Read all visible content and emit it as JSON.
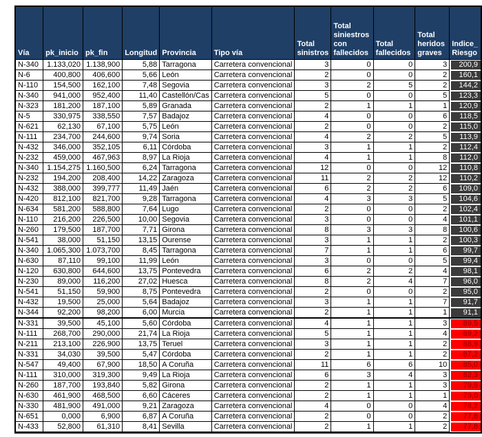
{
  "colors": {
    "header_bg": "#1f3f66",
    "header_text": "#ffffff",
    "grid": "#000000",
    "risk_dark_bg": "#3b3b3b",
    "risk_dark_text": "#ffffff",
    "risk_red_bg": "#fe0000",
    "risk_red_text": "#8e0000"
  },
  "table": {
    "thick_border_after_row": 25,
    "columns": [
      {
        "key": "via",
        "label": "Vía",
        "align": "left",
        "width": 45
      },
      {
        "key": "pk_inicio",
        "label": "pk_inicio",
        "align": "right",
        "width": 61
      },
      {
        "key": "pk_fin",
        "label": "pk_fin",
        "align": "right",
        "width": 59
      },
      {
        "key": "longitud",
        "label": "Longitud",
        "align": "right",
        "width": 49
      },
      {
        "key": "provincia",
        "label": "Provincia",
        "align": "left",
        "width": 62
      },
      {
        "key": "tipo_via",
        "label": "Tipo vía",
        "align": "left",
        "width": 116
      },
      {
        "key": "total_sinistros",
        "label": "Total sinistros",
        "align": "right",
        "width": 44
      },
      {
        "key": "total_siniestros_con_fallecidos",
        "label": "Total siniestros con fallecidos",
        "align": "right",
        "width": 65
      },
      {
        "key": "total_fallecidos",
        "label": "Total fallecidos",
        "align": "right",
        "width": 65
      },
      {
        "key": "total_heridos_graves",
        "label": "Total heridos graves",
        "align": "right",
        "width": 55
      },
      {
        "key": "indice_riesgo",
        "label": "Indice_ Riesgo",
        "align": "right",
        "width": 46
      }
    ],
    "rows": [
      {
        "risk": "dark",
        "values": [
          "N-340",
          "1.133,020",
          "1.138,900",
          "5,88",
          "Tarragona",
          "Carretera convencional",
          "3",
          "0",
          "0",
          "3",
          "200,9"
        ]
      },
      {
        "risk": "dark",
        "values": [
          "N-6",
          "400,800",
          "406,600",
          "5,66",
          "León",
          "Carretera convencional",
          "2",
          "0",
          "0",
          "2",
          "160,1"
        ]
      },
      {
        "risk": "dark",
        "values": [
          "N-110",
          "154,500",
          "162,100",
          "7,48",
          "Segovia",
          "Carretera convencional",
          "3",
          "2",
          "5",
          "2",
          "144,2"
        ]
      },
      {
        "risk": "dark",
        "values": [
          "N-340",
          "941,000",
          "952,400",
          "11,40",
          "Castellón/Cas",
          "Carretera convencional",
          "5",
          "0",
          "0",
          "5",
          "123,3"
        ]
      },
      {
        "risk": "dark",
        "values": [
          "N-323",
          "181,200",
          "187,100",
          "5,89",
          "Granada",
          "Carretera convencional",
          "2",
          "1",
          "1",
          "1",
          "120,9"
        ]
      },
      {
        "risk": "dark",
        "values": [
          "N-5",
          "330,975",
          "338,550",
          "7,57",
          "Badajoz",
          "Carretera convencional",
          "4",
          "0",
          "0",
          "6",
          "118,5"
        ]
      },
      {
        "risk": "dark",
        "values": [
          "N-621",
          "62,130",
          "67,100",
          "5,75",
          "León",
          "Carretera convencional",
          "2",
          "0",
          "0",
          "2",
          "115,0"
        ]
      },
      {
        "risk": "dark",
        "values": [
          "N-111",
          "234,700",
          "244,600",
          "9,74",
          "Soria",
          "Carretera convencional",
          "4",
          "2",
          "2",
          "5",
          "113,9"
        ]
      },
      {
        "risk": "dark",
        "values": [
          "N-432",
          "346,000",
          "352,105",
          "6,11",
          "Córdoba",
          "Carretera convencional",
          "3",
          "1",
          "1",
          "2",
          "112,4"
        ]
      },
      {
        "risk": "dark",
        "values": [
          "N-232",
          "459,000",
          "467,963",
          "8,97",
          "La Rioja",
          "Carretera convencional",
          "4",
          "1",
          "1",
          "8",
          "112,0"
        ]
      },
      {
        "risk": "dark",
        "values": [
          "N-340",
          "1.154,275",
          "1.160,500",
          "6,24",
          "Tarragona",
          "Carretera convencional",
          "12",
          "0",
          "0",
          "12",
          "110,8"
        ]
      },
      {
        "risk": "dark",
        "values": [
          "N-232",
          "194,200",
          "208,400",
          "14,22",
          "Zaragoza",
          "Carretera convencional",
          "11",
          "2",
          "2",
          "12",
          "110,2"
        ]
      },
      {
        "risk": "dark",
        "values": [
          "N-432",
          "388,000",
          "399,777",
          "11,49",
          "Jaén",
          "Carretera convencional",
          "6",
          "2",
          "2",
          "6",
          "109,0"
        ]
      },
      {
        "risk": "dark",
        "values": [
          "N-420",
          "812,100",
          "821,700",
          "9,28",
          "Tarragona",
          "Carretera convencional",
          "4",
          "3",
          "3",
          "5",
          "104,6"
        ]
      },
      {
        "risk": "dark",
        "values": [
          "N-634",
          "581,200",
          "588,800",
          "7,64",
          "Lugo",
          "Carretera convencional",
          "2",
          "0",
          "0",
          "2",
          "102,4"
        ]
      },
      {
        "risk": "dark",
        "values": [
          "N-110",
          "216,200",
          "226,500",
          "10,00",
          "Segovia",
          "Carretera convencional",
          "3",
          "0",
          "0",
          "4",
          "101,1"
        ]
      },
      {
        "risk": "dark",
        "values": [
          "N-260",
          "179,500",
          "187,700",
          "7,71",
          "Girona",
          "Carretera convencional",
          "8",
          "3",
          "3",
          "8",
          "100,6"
        ]
      },
      {
        "risk": "dark",
        "values": [
          "N-541",
          "38,000",
          "51,150",
          "13,15",
          "Ourense",
          "Carretera convencional",
          "3",
          "1",
          "1",
          "2",
          "100,3"
        ]
      },
      {
        "risk": "dark",
        "values": [
          "N-340",
          "1.065,300",
          "1.073,700",
          "8,45",
          "Tarragona",
          "Carretera convencional",
          "7",
          "1",
          "1",
          "6",
          "99,7"
        ]
      },
      {
        "risk": "dark",
        "values": [
          "N-630",
          "87,110",
          "99,100",
          "11,99",
          "León",
          "Carretera convencional",
          "3",
          "0",
          "0",
          "5",
          "99,4"
        ]
      },
      {
        "risk": "dark",
        "values": [
          "N-120",
          "630,800",
          "644,600",
          "13,75",
          "Pontevedra",
          "Carretera convencional",
          "6",
          "2",
          "2",
          "4",
          "98,1"
        ]
      },
      {
        "risk": "dark",
        "values": [
          "N-230",
          "89,000",
          "116,200",
          "27,02",
          "Huesca",
          "Carretera convencional",
          "8",
          "2",
          "4",
          "7",
          "96,0"
        ]
      },
      {
        "risk": "dark",
        "values": [
          "N-541",
          "51,150",
          "59,900",
          "8,75",
          "Pontevedra",
          "Carretera convencional",
          "2",
          "0",
          "0",
          "2",
          "95,0"
        ]
      },
      {
        "risk": "dark",
        "values": [
          "N-432",
          "19,500",
          "25,000",
          "5,64",
          "Badajoz",
          "Carretera convencional",
          "3",
          "1",
          "1",
          "7",
          "91,7"
        ]
      },
      {
        "risk": "dark",
        "values": [
          "N-344",
          "92,200",
          "98,200",
          "6,00",
          "Murcia",
          "Carretera convencional",
          "2",
          "1",
          "1",
          "1",
          "91,1"
        ]
      },
      {
        "risk": "red",
        "values": [
          "N-331",
          "39,500",
          "45,100",
          "5,60",
          "Córdoba",
          "Carretera convencional",
          "4",
          "1",
          "1",
          "3",
          "89,5"
        ]
      },
      {
        "risk": "red",
        "values": [
          "N-111",
          "268,700",
          "290,000",
          "21,74",
          "La Rioja",
          "Carretera convencional",
          "5",
          "1",
          "1",
          "4",
          "89,2"
        ]
      },
      {
        "risk": "red",
        "values": [
          "N-211",
          "213,100",
          "226,900",
          "13,75",
          "Teruel",
          "Carretera convencional",
          "3",
          "1",
          "1",
          "2",
          "88,9"
        ]
      },
      {
        "risk": "red",
        "values": [
          "N-331",
          "34,030",
          "39,500",
          "5,47",
          "Córdoba",
          "Carretera convencional",
          "2",
          "1",
          "1",
          "2",
          "87,2"
        ]
      },
      {
        "risk": "red",
        "values": [
          "N-547",
          "49,400",
          "67,900",
          "18,50",
          "A Coruña",
          "Carretera convencional",
          "11",
          "6",
          "6",
          "10",
          "85,0"
        ]
      },
      {
        "risk": "red",
        "values": [
          "N-111",
          "310,000",
          "319,300",
          "9,49",
          "La Rioja",
          "Carretera convencional",
          "6",
          "3",
          "4",
          "3",
          "82,3"
        ]
      },
      {
        "risk": "red",
        "values": [
          "N-260",
          "187,700",
          "193,840",
          "5,82",
          "Girona",
          "Carretera convencional",
          "2",
          "1",
          "1",
          "3",
          "79,9"
        ]
      },
      {
        "risk": "red",
        "values": [
          "N-630",
          "461,900",
          "468,500",
          "6,60",
          "Cáceres",
          "Carretera convencional",
          "2",
          "1",
          "1",
          "1",
          "79,0"
        ]
      },
      {
        "risk": "red",
        "values": [
          "N-330",
          "481,900",
          "491,000",
          "9,21",
          "Zaragoza",
          "Carretera convencional",
          "4",
          "0",
          "0",
          "4",
          "78,2"
        ]
      },
      {
        "risk": "red",
        "values": [
          "N-651",
          "0,000",
          "6,900",
          "6,87",
          "A Coruña",
          "Carretera convencional",
          "2",
          "0",
          "0",
          "2",
          "77,8"
        ]
      },
      {
        "risk": "red",
        "values": [
          "N-433",
          "52,800",
          "61,310",
          "8,41",
          "Sevilla",
          "Carretera convencional",
          "2",
          "1",
          "1",
          "2",
          "77,8"
        ]
      }
    ]
  }
}
